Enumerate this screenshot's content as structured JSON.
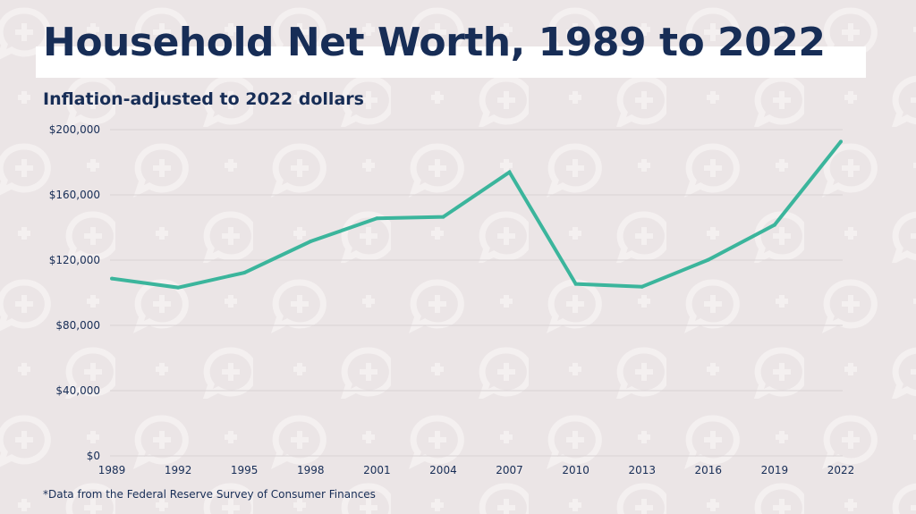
{
  "title": "Household Net Worth, 1989 to 2022",
  "subtitle": "Inflation-adjusted to 2022 dollars",
  "footnote": "*Data from the Federal Reserve Survey of Consumer Finances",
  "colors": {
    "line": "#3bb59c",
    "text": "#172d56",
    "background": "#ebe5e6",
    "grid": "#d8d2d4"
  },
  "background_pattern_icon": "speech-bubble-plus-icon",
  "chart_data": {
    "type": "line",
    "title": "Household Net Worth, 1989 to 2022",
    "subtitle": "Inflation-adjusted to 2022 dollars",
    "xlabel": "",
    "ylabel": "",
    "ylim": [
      0,
      200000
    ],
    "grid": true,
    "x": [
      1989,
      1992,
      1995,
      1998,
      2001,
      2004,
      2007,
      2010,
      2013,
      2016,
      2019,
      2022
    ],
    "x_tick_labels": [
      "1989",
      "1992",
      "1995",
      "1998",
      "2001",
      "2004",
      "2007",
      "2010",
      "2013",
      "2016",
      "2019",
      "2022"
    ],
    "y_ticks": [
      0,
      40000,
      80000,
      120000,
      160000,
      200000
    ],
    "y_tick_labels": [
      "$0",
      "$40,000",
      "$80,000",
      "$120,000",
      "$160,000",
      "$200,000"
    ],
    "series": [
      {
        "values": [
          108700,
          103200,
          112300,
          131500,
          145600,
          146500,
          173900,
          105400,
          103700,
          120200,
          141600,
          192700
        ]
      }
    ]
  }
}
